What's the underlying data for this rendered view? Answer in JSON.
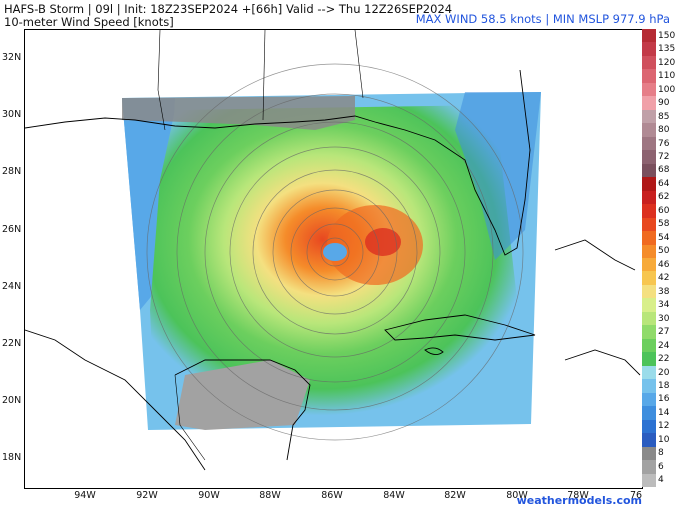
{
  "header": {
    "line1": "HAFS-B Storm | 09l | Init: 18Z23SEP2024 +[66h] Valid --> Thu 12Z26SEP2024",
    "line2": "10-meter Wind Speed [knots]",
    "stats": "MAX WIND 58.5 knots | MIN MSLP 977.9 hPa"
  },
  "credit": "weathermodels.com",
  "lat_labels": [
    "32N",
    "30N",
    "28N",
    "26N",
    "24N",
    "22N",
    "20N",
    "18N"
  ],
  "lon_labels": [
    "94W",
    "92W",
    "90W",
    "88W",
    "86W",
    "84W",
    "82W",
    "80W",
    "78W",
    "76"
  ],
  "colorbar": {
    "labels": [
      "150",
      "135",
      "120",
      "110",
      "100",
      "90",
      "85",
      "80",
      "76",
      "72",
      "68",
      "64",
      "62",
      "60",
      "58",
      "54",
      "50",
      "46",
      "42",
      "38",
      "34",
      "30",
      "27",
      "24",
      "22",
      "20",
      "18",
      "16",
      "14",
      "12",
      "10",
      "8",
      "6",
      "4"
    ],
    "colors": [
      "#b52b34",
      "#c33a48",
      "#d0505d",
      "#dc6672",
      "#e67e88",
      "#f0a0a8",
      "#c0a0a8",
      "#b08a94",
      "#9e7682",
      "#8c6270",
      "#7a505e",
      "#b01818",
      "#c82020",
      "#dc3020",
      "#e84820",
      "#f06a20",
      "#f58c2a",
      "#f7aa3a",
      "#f7c650",
      "#f4e080",
      "#d8ef8a",
      "#b8e67a",
      "#90db6a",
      "#6ccf5e",
      "#4cc35a",
      "#9adcea",
      "#76c2ec",
      "#58a8e8",
      "#3e8ede",
      "#2c72d2",
      "#2a5cc0",
      "#8a8a8a",
      "#a2a2a2",
      "#bcbcbc"
    ]
  },
  "storm": {
    "max_wind_knots": 58.5,
    "min_mslp_hpa": 977.9
  }
}
